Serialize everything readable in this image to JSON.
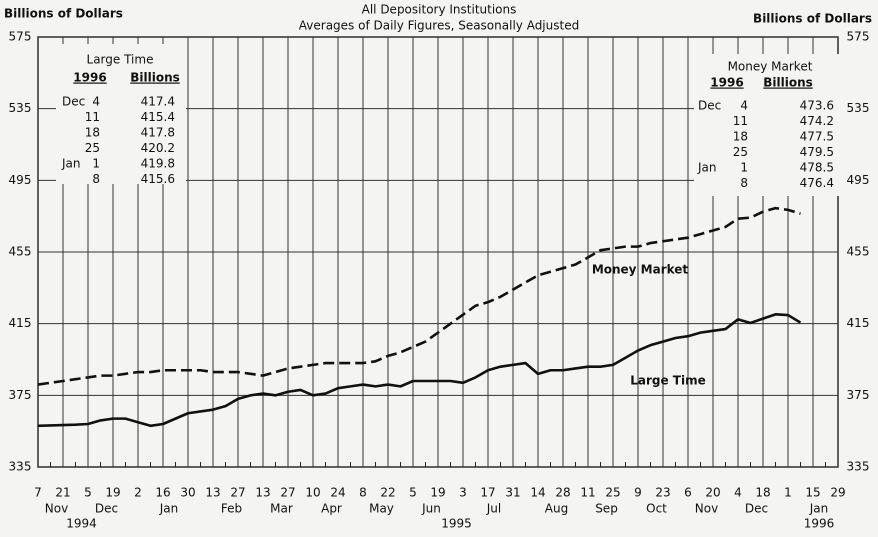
{
  "chart_data": {
    "type": "line",
    "title": "All Depository Institutions",
    "subtitle": "Averages of Daily Figures, Seasonally Adjusted",
    "ylabel": "Billions of Dollars",
    "y2label": "Billions of Dollars",
    "ylim": [
      335,
      575
    ],
    "yticks": [
      335,
      375,
      415,
      455,
      495,
      535,
      575
    ],
    "xlim": [
      "1994-11-07",
      "1996-01-29"
    ],
    "xticks": [
      {
        "value": "1994-11-07",
        "label": "7"
      },
      {
        "value": "1994-11-21",
        "label": "21"
      },
      {
        "value": "1994-12-05",
        "label": "5"
      },
      {
        "value": "1994-12-19",
        "label": "19"
      },
      {
        "value": "1995-01-02",
        "label": "2"
      },
      {
        "value": "1995-01-16",
        "label": "16"
      },
      {
        "value": "1995-01-30",
        "label": "30"
      },
      {
        "value": "1995-02-13",
        "label": "13"
      },
      {
        "value": "1995-02-27",
        "label": "27"
      },
      {
        "value": "1995-03-13",
        "label": "13"
      },
      {
        "value": "1995-03-27",
        "label": "27"
      },
      {
        "value": "1995-04-10",
        "label": "10"
      },
      {
        "value": "1995-04-24",
        "label": "24"
      },
      {
        "value": "1995-05-08",
        "label": "8"
      },
      {
        "value": "1995-05-22",
        "label": "22"
      },
      {
        "value": "1995-06-05",
        "label": "5"
      },
      {
        "value": "1995-06-19",
        "label": "19"
      },
      {
        "value": "1995-07-03",
        "label": "3"
      },
      {
        "value": "1995-07-17",
        "label": "17"
      },
      {
        "value": "1995-07-31",
        "label": "31"
      },
      {
        "value": "1995-08-14",
        "label": "14"
      },
      {
        "value": "1995-08-28",
        "label": "28"
      },
      {
        "value": "1995-09-11",
        "label": "11"
      },
      {
        "value": "1995-09-25",
        "label": "25"
      },
      {
        "value": "1995-10-09",
        "label": "9"
      },
      {
        "value": "1995-10-23",
        "label": "23"
      },
      {
        "value": "1995-11-06",
        "label": "6"
      },
      {
        "value": "1995-11-20",
        "label": "20"
      },
      {
        "value": "1995-12-04",
        "label": "4"
      },
      {
        "value": "1995-12-18",
        "label": "18"
      },
      {
        "value": "1996-01-01",
        "label": "1"
      },
      {
        "value": "1996-01-15",
        "label": "15"
      },
      {
        "value": "1996-01-29",
        "label": "29"
      }
    ],
    "month_labels": [
      "Nov",
      "Dec",
      "Jan",
      "Feb",
      "Mar",
      "Apr",
      "May",
      "Jun",
      "Jul",
      "Aug",
      "Sep",
      "Oct",
      "Nov",
      "Dec",
      "Jan"
    ],
    "year_labels": [
      "1994",
      "1995",
      "1996"
    ],
    "grid": true,
    "x": [
      "1994-11-07",
      "1994-11-14",
      "1994-11-21",
      "1994-11-28",
      "1994-12-05",
      "1994-12-12",
      "1994-12-19",
      "1994-12-26",
      "1995-01-02",
      "1995-01-09",
      "1995-01-16",
      "1995-01-23",
      "1995-01-30",
      "1995-02-06",
      "1995-02-13",
      "1995-02-20",
      "1995-02-27",
      "1995-03-06",
      "1995-03-13",
      "1995-03-20",
      "1995-03-27",
      "1995-04-03",
      "1995-04-10",
      "1995-04-17",
      "1995-04-24",
      "1995-05-01",
      "1995-05-08",
      "1995-05-15",
      "1995-05-22",
      "1995-05-29",
      "1995-06-05",
      "1995-06-12",
      "1995-06-19",
      "1995-06-26",
      "1995-07-03",
      "1995-07-10",
      "1995-07-17",
      "1995-07-24",
      "1995-07-31",
      "1995-08-07",
      "1995-08-14",
      "1995-08-21",
      "1995-08-28",
      "1995-09-04",
      "1995-09-11",
      "1995-09-18",
      "1995-09-25",
      "1995-10-02",
      "1995-10-09",
      "1995-10-16",
      "1995-10-23",
      "1995-10-30",
      "1995-11-06",
      "1995-11-13",
      "1995-11-20",
      "1995-11-27",
      "1995-12-04",
      "1995-12-11",
      "1995-12-18",
      "1995-12-25",
      "1996-01-01",
      "1996-01-08"
    ],
    "series": [
      {
        "name": "Large Time",
        "color": "#111111",
        "dash": false,
        "values": [
          358,
          358.2,
          358.4,
          358.6,
          359,
          361,
          362,
          362,
          360,
          358,
          359,
          362,
          365,
          366,
          367,
          369,
          373,
          375,
          376,
          375,
          377,
          378,
          375,
          376,
          379,
          380,
          381,
          380,
          381,
          380,
          383,
          383,
          383,
          383,
          382,
          385,
          389,
          391,
          392,
          393,
          387,
          389,
          389,
          390,
          391,
          391,
          392,
          396,
          400,
          403,
          405,
          407,
          408,
          410,
          411,
          412,
          417.4,
          415.4,
          417.8,
          420.2,
          419.8,
          415.6
        ]
      },
      {
        "name": "Money Market",
        "color": "#111111",
        "dash": true,
        "values": [
          381,
          382,
          383,
          384,
          385,
          386,
          386,
          387,
          388,
          388,
          389,
          389,
          389,
          389,
          388,
          388,
          388,
          387,
          386,
          388,
          390,
          391,
          392,
          393,
          393,
          393,
          393,
          394,
          397,
          399,
          402,
          405,
          410,
          415,
          420,
          425,
          427,
          430,
          434,
          438,
          442,
          444,
          446,
          448,
          452,
          456,
          457,
          458,
          458,
          460,
          461,
          462,
          463,
          465,
          467,
          469,
          473.6,
          474.2,
          477.5,
          479.5,
          478.5,
          476.4
        ]
      }
    ],
    "tables": [
      {
        "title": "Large Time",
        "columns": [
          "1996",
          "Billions"
        ],
        "series": 0,
        "rows": [
          {
            "month": "Dec",
            "day": 4,
            "index": 56
          },
          {
            "day": 11,
            "index": 57
          },
          {
            "day": 18,
            "index": 58
          },
          {
            "day": 25,
            "index": 59
          },
          {
            "month": "Jan",
            "day": 1,
            "index": 60
          },
          {
            "day": 8,
            "index": 61
          }
        ]
      },
      {
        "title": "Money Market",
        "columns": [
          "1996",
          "Billions"
        ],
        "series": 1,
        "rows": [
          {
            "month": "Dec",
            "day": 4,
            "index": 56
          },
          {
            "day": 11,
            "index": 57
          },
          {
            "day": 18,
            "index": 58
          },
          {
            "day": 25,
            "index": 59
          },
          {
            "month": "Jan",
            "day": 1,
            "index": 60
          },
          {
            "day": 8,
            "index": 61
          }
        ]
      }
    ]
  }
}
